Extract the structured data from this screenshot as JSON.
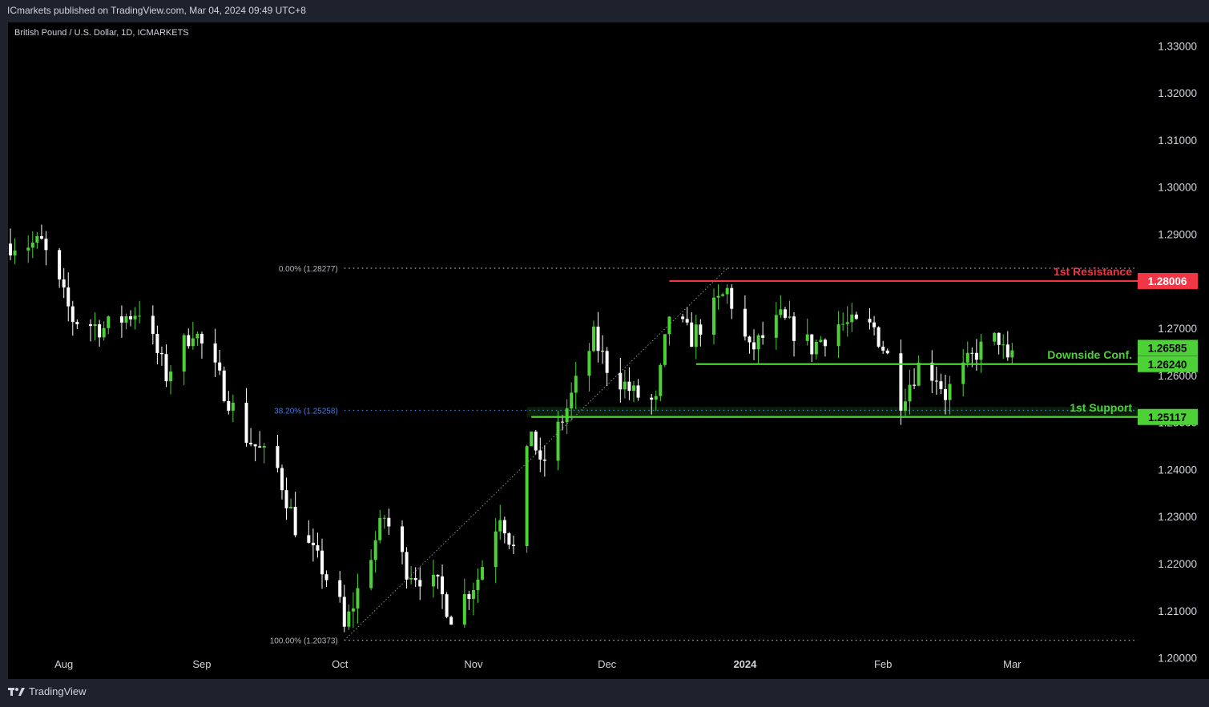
{
  "header": {
    "publisher": "ICmarkets published on TradingView.com, Mar 04, 2024 09:49 UTC+8"
  },
  "footer": {
    "logo_text": "TradingView"
  },
  "colors": {
    "background": "#000000",
    "frame": "#1e222d",
    "bull_candle": "#4cd137",
    "bear_candle": "#ffffff",
    "resistance": "#f23645",
    "support": "#4cd137",
    "fib_zero": "#b2b5be",
    "fib_382": "#4a7cde",
    "text": "#d1d4dc"
  },
  "chart_data": {
    "type": "candlestick",
    "title": "British Pound / U.S. Dollar, 1D, ICMARKETS",
    "ylim": [
      1.1955,
      1.335
    ],
    "y_ticks": [
      "1.33000",
      "1.32000",
      "1.31000",
      "1.30000",
      "1.29000",
      "1.28000",
      "1.27000",
      "1.26000",
      "1.25000",
      "1.24000",
      "1.23000",
      "1.22000",
      "1.21000",
      "1.20000"
    ],
    "x_ticks": [
      {
        "label": "Aug",
        "bold": false
      },
      {
        "label": "Sep",
        "bold": false
      },
      {
        "label": "Oct",
        "bold": false
      },
      {
        "label": "Nov",
        "bold": false
      },
      {
        "label": "Dec",
        "bold": false
      },
      {
        "label": "2024",
        "bold": true
      },
      {
        "label": "Feb",
        "bold": false
      },
      {
        "label": "Mar",
        "bold": false
      }
    ],
    "start_price": 1.288,
    "waypoints": [
      {
        "date": "2023-07-20",
        "price": 1.288
      },
      {
        "date": "2023-07-27",
        "price": 1.288
      },
      {
        "date": "2023-08-03",
        "price": 1.272
      },
      {
        "date": "2023-08-10",
        "price": 1.27
      },
      {
        "date": "2023-08-18",
        "price": 1.274
      },
      {
        "date": "2023-08-24",
        "price": 1.26
      },
      {
        "date": "2023-08-30",
        "price": 1.27
      },
      {
        "date": "2023-09-05",
        "price": 1.259
      },
      {
        "date": "2023-09-11",
        "price": 1.247
      },
      {
        "date": "2023-09-18",
        "price": 1.24
      },
      {
        "date": "2023-09-22",
        "price": 1.228
      },
      {
        "date": "2023-09-28",
        "price": 1.219
      },
      {
        "date": "2023-10-02",
        "price": 1.211
      },
      {
        "date": "2023-10-03",
        "price": 1.206
      },
      {
        "date": "2023-10-10",
        "price": 1.225
      },
      {
        "date": "2023-10-12",
        "price": 1.23
      },
      {
        "date": "2023-10-17",
        "price": 1.219
      },
      {
        "date": "2023-10-24",
        "price": 1.215
      },
      {
        "date": "2023-10-27",
        "price": 1.209
      },
      {
        "date": "2023-11-02",
        "price": 1.217
      },
      {
        "date": "2023-11-07",
        "price": 1.231
      },
      {
        "date": "2023-11-10",
        "price": 1.223
      },
      {
        "date": "2023-11-14",
        "price": 1.249
      },
      {
        "date": "2023-11-16",
        "price": 1.24
      },
      {
        "date": "2023-11-22",
        "price": 1.253
      },
      {
        "date": "2023-11-28",
        "price": 1.268
      },
      {
        "date": "2023-12-01",
        "price": 1.262
      },
      {
        "date": "2023-12-07",
        "price": 1.256
      },
      {
        "date": "2023-12-12",
        "price": 1.254
      },
      {
        "date": "2023-12-15",
        "price": 1.273
      },
      {
        "date": "2023-12-20",
        "price": 1.268
      },
      {
        "date": "2023-12-28",
        "price": 1.278
      },
      {
        "date": "2024-01-02",
        "price": 1.265
      },
      {
        "date": "2024-01-09",
        "price": 1.272
      },
      {
        "date": "2024-01-16",
        "price": 1.266
      },
      {
        "date": "2024-01-22",
        "price": 1.271
      },
      {
        "date": "2024-01-30",
        "price": 1.27
      },
      {
        "date": "2024-02-02",
        "price": 1.264
      },
      {
        "date": "2024-02-05",
        "price": 1.255
      },
      {
        "date": "2024-02-09",
        "price": 1.262
      },
      {
        "date": "2024-02-13",
        "price": 1.26
      },
      {
        "date": "2024-02-15",
        "price": 1.256
      },
      {
        "date": "2024-02-22",
        "price": 1.265
      },
      {
        "date": "2024-02-27",
        "price": 1.268
      },
      {
        "date": "2024-02-29",
        "price": 1.262
      },
      {
        "date": "2024-03-01",
        "price": 1.265
      }
    ],
    "fib_levels": [
      {
        "label": "0.00% (1.28277)",
        "price": 1.28277,
        "start_date": "2023-12-28",
        "color_key": "fib_zero"
      },
      {
        "label": "38.20% (1.25258)",
        "price": 1.25258,
        "start_date": "2023-11-14",
        "color_key": "fib_382"
      },
      {
        "label": "100.00% (1.20373)",
        "price": 1.20373,
        "start_date": "2023-10-03",
        "color_key": "fib_zero"
      }
    ],
    "levels": [
      {
        "name": "1st Resistance",
        "price": 1.28006,
        "price_label": "1.28006",
        "color_key": "resistance",
        "start_date": "2023-12-15"
      },
      {
        "name": "Downside Conf.",
        "price": 1.2624,
        "price_label": "1.26240",
        "color_key": "support",
        "start_date": "2023-12-21"
      },
      {
        "name": "1st Support",
        "price": 1.25117,
        "price_label": "1.25117",
        "color_key": "support",
        "start_date": "2023-11-14"
      }
    ],
    "current_price": {
      "price": 1.26585,
      "price_label": "1.26585"
    },
    "support_zone": [
      1.25117,
      1.2533
    ],
    "trendline": {
      "from": {
        "date": "2023-10-03",
        "price": 1.20373
      },
      "to": {
        "date": "2023-12-28",
        "price": 1.28277
      }
    }
  }
}
